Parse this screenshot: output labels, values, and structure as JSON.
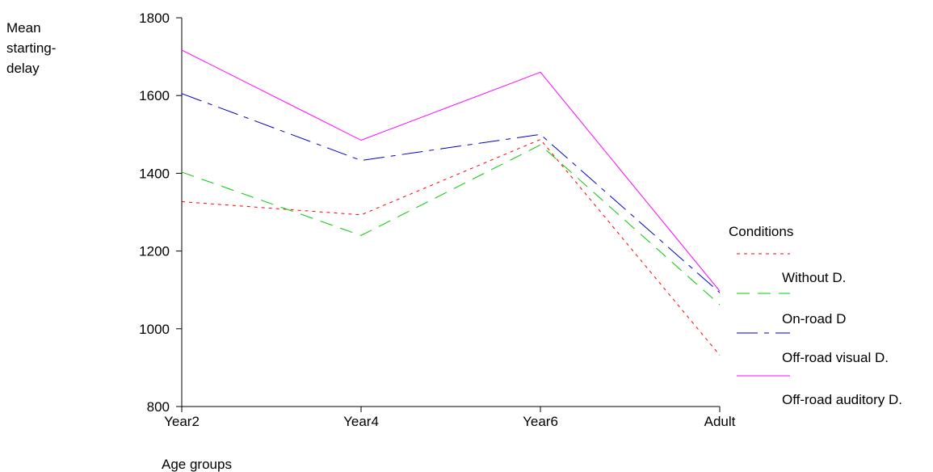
{
  "chart_data": {
    "type": "line",
    "ylabel_lines": [
      "Mean",
      "starting-",
      "delay"
    ],
    "xlabel": "Age groups",
    "categories": [
      "Year2",
      "Year4",
      "Year6",
      "Adult"
    ],
    "yticks": [
      800,
      1000,
      1200,
      1400,
      1600,
      1800
    ],
    "ylim": [
      800,
      1800
    ],
    "grid": false,
    "legend": {
      "title": "Conditions",
      "placement": "right",
      "labels": [
        "Without D.",
        "On-road D",
        "Off-road visual D.",
        "Off-road auditory D."
      ]
    },
    "series": [
      {
        "values": [
          1327,
          1293,
          1487,
          932
        ],
        "color": "#ff0000",
        "dash": "dotted"
      },
      {
        "values": [
          1403,
          1240,
          1473,
          1062
        ],
        "color": "#00cc00",
        "dash": "dashed"
      },
      {
        "values": [
          1605,
          1433,
          1500,
          1093
        ],
        "color": "#0000cc",
        "dash": "dashdot"
      },
      {
        "values": [
          1717,
          1485,
          1660,
          1097
        ],
        "color": "#ff00ff",
        "dash": "solid"
      }
    ]
  }
}
